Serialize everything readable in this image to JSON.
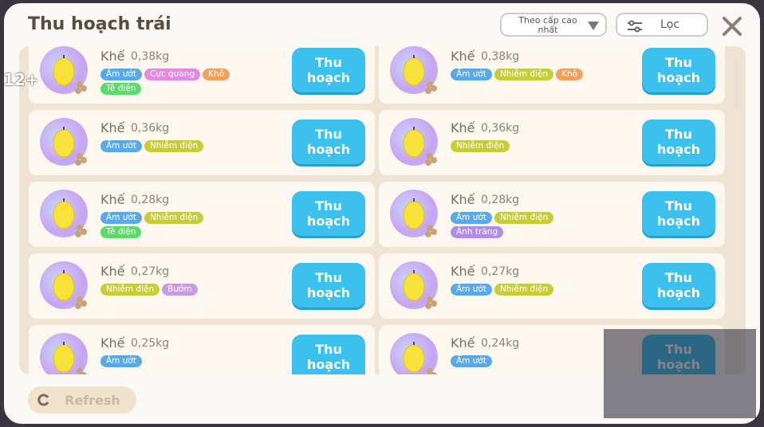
{
  "age_badge": "12+",
  "header": {
    "title": "Thu hoạch trái",
    "sort": "Theo cấp cao nhất",
    "filter": "Lọc"
  },
  "items": [
    {
      "name": "Khế",
      "weight": "0,38kg",
      "button": "Thu hoạch",
      "tags": [
        {
          "label": "Ẩm ướt",
          "color": "#5aa9e6"
        },
        {
          "label": "Cực quang",
          "color": "#e38ade"
        },
        {
          "label": "Khô",
          "color": "#f0a25c"
        },
        {
          "label": "Tê điện",
          "color": "#5cd86c"
        }
      ]
    },
    {
      "name": "Khế",
      "weight": "0,38kg",
      "button": "Thu hoạch",
      "tags": [
        {
          "label": "Ẩm ướt",
          "color": "#5aa9e6"
        },
        {
          "label": "Nhiễm điện",
          "color": "#c7cd3a"
        },
        {
          "label": "Khô",
          "color": "#f0a25c"
        }
      ]
    },
    {
      "name": "Khế",
      "weight": "0,36kg",
      "button": "Thu hoạch",
      "tags": [
        {
          "label": "Ẩm ướt",
          "color": "#5aa9e6"
        },
        {
          "label": "Nhiễm điện",
          "color": "#c7cd3a"
        }
      ]
    },
    {
      "name": "Khế",
      "weight": "0,36kg",
      "button": "Thu hoạch",
      "tags": [
        {
          "label": "Nhiễm điện",
          "color": "#c7cd3a"
        }
      ]
    },
    {
      "name": "Khế",
      "weight": "0,28kg",
      "button": "Thu hoạch",
      "tags": [
        {
          "label": "Ẩm ướt",
          "color": "#5aa9e6"
        },
        {
          "label": "Nhiễm điện",
          "color": "#c7cd3a"
        },
        {
          "label": "Tê điện",
          "color": "#5cd86c"
        }
      ]
    },
    {
      "name": "Khế",
      "weight": "0,28kg",
      "button": "Thu hoạch",
      "tags": [
        {
          "label": "Ẩm ướt",
          "color": "#5aa9e6"
        },
        {
          "label": "Nhiễm điện",
          "color": "#c7cd3a"
        },
        {
          "label": "Ánh trăng",
          "color": "#b18be6"
        }
      ]
    },
    {
      "name": "Khế",
      "weight": "0,27kg",
      "button": "Thu hoạch",
      "tags": [
        {
          "label": "Nhiễm điện",
          "color": "#c7cd3a"
        },
        {
          "label": "Bướm",
          "color": "#c89ae0"
        }
      ]
    },
    {
      "name": "Khế",
      "weight": "0,27kg",
      "button": "Thu hoạch",
      "tags": [
        {
          "label": "Ẩm ướt",
          "color": "#5aa9e6"
        },
        {
          "label": "Nhiễm điện",
          "color": "#c7cd3a"
        }
      ]
    },
    {
      "name": "Khế",
      "weight": "0,25kg",
      "button": "Thu hoạch",
      "tags": [
        {
          "label": "Ẩm ướt",
          "color": "#5aa9e6"
        }
      ]
    },
    {
      "name": "Khế",
      "weight": "0,24kg",
      "button": "Thu hoạch",
      "tags": [
        {
          "label": "Ẩm ướt",
          "color": "#5aa9e6"
        }
      ]
    }
  ],
  "refresh": "Refresh"
}
